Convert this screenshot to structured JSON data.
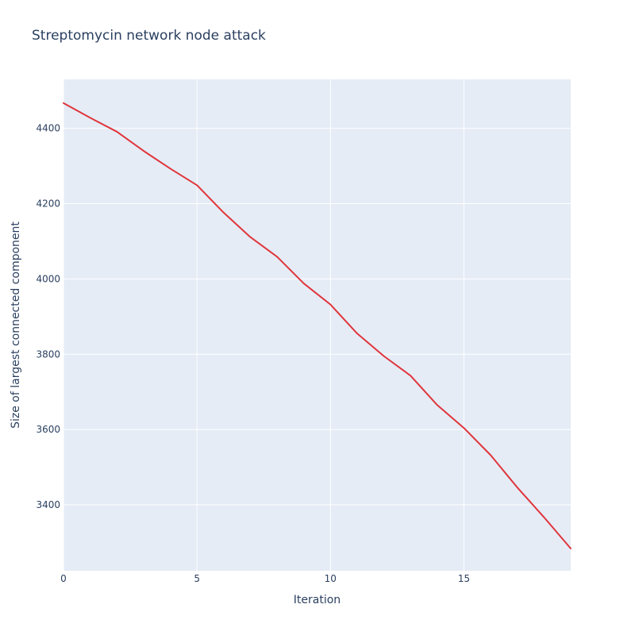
{
  "chart_data": {
    "type": "line",
    "title": "Streptomycin network node attack",
    "xlabel": "Iteration",
    "ylabel": "Size of largest connected component",
    "xlim": [
      0,
      19
    ],
    "ylim": [
      3225,
      4530
    ],
    "xticks": [
      0,
      5,
      10,
      15
    ],
    "yticks": [
      3400,
      3600,
      3800,
      4000,
      4200,
      4400
    ],
    "grid": true,
    "legend": false,
    "colors": {
      "plot_background": "#e5ecf6",
      "grid": "#ffffff",
      "line": "#e0353c",
      "text": "#2a3f5f"
    },
    "series": [
      {
        "name": "Size of largest connected component",
        "x": [
          0,
          1,
          2,
          3,
          4,
          5,
          6,
          7,
          8,
          9,
          10,
          11,
          12,
          13,
          14,
          15,
          16,
          17,
          18,
          19
        ],
        "values": [
          4467,
          4428,
          4391,
          4340,
          4293,
          4249,
          4176,
          4111,
          4059,
          3988,
          3932,
          3855,
          3795,
          3743,
          3665,
          3604,
          3532,
          3446,
          3367,
          3284
        ]
      }
    ]
  }
}
